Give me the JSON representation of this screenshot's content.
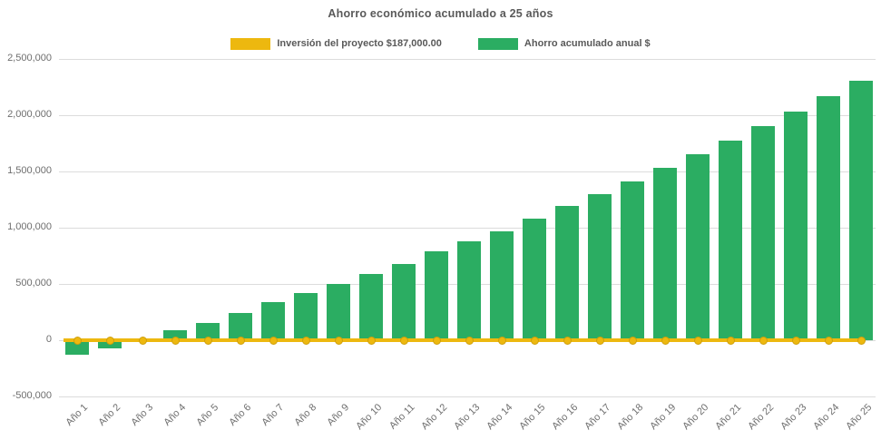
{
  "chart_data": {
    "type": "bar",
    "title": "Ahorro económico acumulado a 25 años",
    "categories": [
      "Año 1",
      "Año 2",
      "Año 3",
      "Año 4",
      "Año 5",
      "Año 6",
      "Año 7",
      "Año 8",
      "Año 9",
      "Año 10",
      "Año 11",
      "Año 12",
      "Año 13",
      "Año 14",
      "Año 15",
      "Año 16",
      "Año 17",
      "Año 18",
      "Año 19",
      "Año 20",
      "Año 21",
      "Año 22",
      "Año 23",
      "Año 24",
      "Año 25"
    ],
    "series": [
      {
        "name": "Inversión del proyecto $187,000.00",
        "type": "line",
        "color": "#edb80f",
        "marker": "circle",
        "marker_border_color": "#cf9f0b",
        "investment_amount": 187000,
        "values": [
          0,
          0,
          0,
          0,
          0,
          0,
          0,
          0,
          0,
          0,
          0,
          0,
          0,
          0,
          0,
          0,
          0,
          0,
          0,
          0,
          0,
          0,
          0,
          0,
          0
        ]
      },
      {
        "name": "Ahorro acumulado anual $",
        "type": "bar",
        "color": "#2bad62",
        "values": [
          -125000,
          -70000,
          20000,
          90000,
          155000,
          240000,
          335000,
          420000,
          500000,
          590000,
          680000,
          790000,
          880000,
          970000,
          1080000,
          1195000,
          1295000,
          1415000,
          1535000,
          1650000,
          1775000,
          1905000,
          2030000,
          2170000,
          2305000
        ]
      }
    ],
    "ylim": [
      -500000,
      2500000
    ],
    "ytick_values": [
      2500000,
      2000000,
      1500000,
      1000000,
      500000,
      0,
      -500000
    ],
    "ytick_labels": [
      "2,500,000",
      "2,000,000",
      "1,500,000",
      "1,000,000",
      "500,000",
      "0",
      "-500,000"
    ],
    "xlabel": "",
    "ylabel": "",
    "grid": true,
    "gridline_color": "#dcdcdc",
    "legend_position": "top",
    "background_color": "#ffffff",
    "text_color": "#595959",
    "axis_text_color": "#6e6e6e"
  }
}
